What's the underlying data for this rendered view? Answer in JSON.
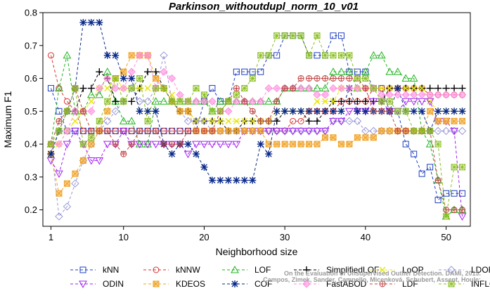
{
  "chart_data": {
    "type": "line",
    "title": "Parkinson_withoutdupl_norm_10_v01",
    "xlabel": "Neighborhood size",
    "ylabel": "Maximum F1",
    "xlim": [
      0,
      53
    ],
    "ylim": [
      0.15,
      0.8
    ],
    "xticks": [
      1,
      10,
      20,
      30,
      40,
      50
    ],
    "yticks": [
      0.2,
      0.3,
      0.4,
      0.5,
      0.6,
      0.7,
      0.8
    ],
    "x": [
      1,
      2,
      3,
      4,
      5,
      6,
      7,
      8,
      9,
      10,
      11,
      12,
      13,
      14,
      15,
      16,
      17,
      18,
      19,
      20,
      21,
      22,
      23,
      24,
      25,
      26,
      27,
      28,
      29,
      30,
      31,
      32,
      33,
      34,
      35,
      36,
      37,
      38,
      39,
      40,
      41,
      42,
      43,
      44,
      45,
      46,
      47,
      48,
      49,
      50,
      51,
      52
    ],
    "legend_position": "bottom",
    "credit": "Campos, Zimek, Sander, Campello, Micenková, Schubert, Assent, Houle: On the Evaluation of Unsupervised Outlier Detection. DAMI, 2015.",
    "series": [
      {
        "name": "kNN",
        "color": "#1f3fbf",
        "marker": "square",
        "values": [
          0.57,
          0.5,
          0.44,
          0.44,
          0.44,
          0.44,
          0.44,
          0.44,
          0.44,
          0.44,
          0.44,
          0.44,
          0.44,
          0.44,
          0.44,
          0.44,
          0.44,
          0.44,
          0.44,
          0.53,
          0.57,
          0.53,
          0.53,
          0.62,
          0.62,
          0.62,
          0.62,
          0.67,
          0.67,
          0.73,
          0.73,
          0.73,
          0.67,
          0.67,
          0.67,
          0.73,
          0.73,
          0.62,
          0.62,
          0.62,
          0.57,
          0.57,
          0.5,
          0.5,
          0.4,
          0.37,
          0.31,
          0.33,
          0.23,
          0.25,
          0.25,
          0.25
        ]
      },
      {
        "name": "kNNW",
        "color": "#d93030",
        "marker": "circle",
        "values": [
          0.67,
          0.57,
          0.53,
          0.5,
          0.44,
          0.44,
          0.44,
          0.44,
          0.44,
          0.44,
          0.44,
          0.44,
          0.44,
          0.44,
          0.44,
          0.44,
          0.44,
          0.44,
          0.44,
          0.44,
          0.44,
          0.44,
          0.44,
          0.44,
          0.44,
          0.44,
          0.44,
          0.44,
          0.44,
          0.44,
          0.47,
          0.47,
          0.5,
          0.5,
          0.5,
          0.5,
          0.53,
          0.53,
          0.53,
          0.53,
          0.57,
          0.57,
          0.57,
          0.57,
          0.57,
          0.57,
          0.57,
          0.55,
          0.55,
          0.55,
          0.55,
          0.55
        ]
      },
      {
        "name": "LOF",
        "color": "#1db31d",
        "marker": "triangle-up",
        "values": [
          0.4,
          0.57,
          0.67,
          0.5,
          0.5,
          0.55,
          0.55,
          0.62,
          0.53,
          0.47,
          0.47,
          0.4,
          0.4,
          0.53,
          0.53,
          0.53,
          0.53,
          0.53,
          0.53,
          0.53,
          0.5,
          0.53,
          0.53,
          0.53,
          0.53,
          0.53,
          0.53,
          0.53,
          0.53,
          0.57,
          0.57,
          0.57,
          0.57,
          0.57,
          0.57,
          0.62,
          0.62,
          0.62,
          0.57,
          0.62,
          0.67,
          0.67,
          0.62,
          0.62,
          0.6,
          0.6,
          0.44,
          0.4,
          0.29,
          0.18,
          0.2,
          0.2
        ]
      },
      {
        "name": "SimplifiedLOF",
        "color": "#000000",
        "marker": "plus",
        "values": [
          0.37,
          0.44,
          0.5,
          0.5,
          0.57,
          0.57,
          0.62,
          0.6,
          0.53,
          0.53,
          0.53,
          0.57,
          0.62,
          0.62,
          0.57,
          0.53,
          0.5,
          0.5,
          0.47,
          0.47,
          0.47,
          0.47,
          0.44,
          0.44,
          0.47,
          0.47,
          0.47,
          0.47,
          0.47,
          0.5,
          0.5,
          0.5,
          0.47,
          0.47,
          0.5,
          0.53,
          0.53,
          0.53,
          0.53,
          0.53,
          0.53,
          0.53,
          0.57,
          0.57,
          0.57,
          0.57,
          0.57,
          0.57,
          0.57,
          0.57,
          0.57,
          0.57
        ]
      },
      {
        "name": "LoOP",
        "color": "#e6e600",
        "marker": "x",
        "values": [
          0.4,
          0.4,
          0.44,
          0.47,
          0.5,
          0.53,
          0.57,
          0.57,
          0.6,
          0.57,
          0.57,
          0.57,
          0.57,
          0.6,
          0.57,
          0.55,
          0.5,
          0.5,
          0.47,
          0.47,
          0.47,
          0.47,
          0.47,
          0.47,
          0.47,
          0.47,
          0.47,
          0.47,
          0.5,
          0.5,
          0.5,
          0.5,
          0.5,
          0.53,
          0.53,
          0.53,
          0.57,
          0.57,
          0.57,
          0.57,
          0.57,
          0.57,
          0.57,
          0.57,
          0.57,
          0.57,
          0.57,
          0.53,
          0.5,
          0.5,
          0.5,
          0.5
        ]
      },
      {
        "name": "LDOF",
        "color": "#9898d8",
        "marker": "diamond",
        "values": [
          0.4,
          0.18,
          0.21,
          0.28,
          0.35,
          0.4,
          0.44,
          0.47,
          0.5,
          0.53,
          0.57,
          0.53,
          0.53,
          0.57,
          0.67,
          0.53,
          0.5,
          0.47,
          0.47,
          0.47,
          0.44,
          0.44,
          0.44,
          0.44,
          0.44,
          0.44,
          0.44,
          0.44,
          0.44,
          0.44,
          0.44,
          0.44,
          0.44,
          0.44,
          0.44,
          0.47,
          0.47,
          0.47,
          0.47,
          0.44,
          0.44,
          0.44,
          0.44,
          0.44,
          0.44,
          0.44,
          0.44,
          0.44,
          0.44,
          0.44,
          0.44,
          0.44
        ]
      },
      {
        "name": "ODIN",
        "color": "#a020f0",
        "marker": "triangle-down",
        "values": [
          0.35,
          0.31,
          0.4,
          0.44,
          0.4,
          0.35,
          0.35,
          0.4,
          0.4,
          0.44,
          0.4,
          0.4,
          0.4,
          0.4,
          0.4,
          0.4,
          0.4,
          0.37,
          0.4,
          0.4,
          0.4,
          0.4,
          0.4,
          0.4,
          0.44,
          0.44,
          0.44,
          0.44,
          0.44,
          0.44,
          0.44,
          0.44,
          0.44,
          0.44,
          0.44,
          0.47,
          0.47,
          0.5,
          0.5,
          0.5,
          0.53,
          0.53,
          0.5,
          0.5,
          0.53,
          0.53,
          0.53,
          0.53,
          0.47,
          0.47,
          0.44,
          0.18
        ]
      },
      {
        "name": "KDEOS",
        "color": "#f0a020",
        "marker": "square-x",
        "values": [
          0.37,
          0.25,
          0.28,
          0.31,
          0.35,
          0.4,
          0.44,
          0.5,
          0.6,
          0.62,
          0.67,
          0.67,
          0.67,
          0.6,
          0.57,
          0.53,
          0.5,
          0.5,
          0.44,
          0.44,
          0.44,
          0.44,
          0.44,
          0.44,
          0.44,
          0.44,
          0.44,
          0.4,
          0.4,
          0.4,
          0.4,
          0.4,
          0.4,
          0.4,
          0.42,
          0.42,
          0.4,
          0.4,
          0.42,
          0.42,
          0.42,
          0.44,
          0.44,
          0.44,
          0.44,
          0.44,
          0.44,
          0.5,
          0.47,
          0.47,
          0.47,
          0.47
        ]
      },
      {
        "name": "COF",
        "color": "#0a2a8a",
        "marker": "asterisk",
        "values": [
          0.37,
          0.44,
          0.5,
          0.57,
          0.77,
          0.77,
          0.77,
          0.67,
          0.67,
          0.6,
          0.6,
          0.5,
          0.5,
          0.5,
          0.4,
          0.37,
          0.4,
          0.4,
          0.37,
          0.33,
          0.29,
          0.29,
          0.29,
          0.29,
          0.29,
          0.29,
          0.4,
          0.37,
          0.5,
          0.5,
          0.5,
          0.5,
          0.5,
          0.5,
          0.5,
          0.5,
          0.5,
          0.57,
          0.5,
          0.5,
          0.5,
          0.5,
          0.5,
          0.57,
          0.5,
          0.5,
          0.5,
          0.44,
          0.5,
          0.5,
          0.5,
          0.5
        ]
      },
      {
        "name": "FastABOD",
        "color": "#ff90e0",
        "marker": "diamond-filled",
        "values": [
          0.4,
          0.4,
          0.44,
          0.5,
          0.5,
          0.5,
          0.57,
          0.6,
          0.57,
          0.57,
          0.62,
          0.67,
          0.67,
          0.57,
          0.62,
          0.6,
          0.55,
          0.53,
          0.53,
          0.53,
          0.53,
          0.5,
          0.5,
          0.53,
          0.53,
          0.53,
          0.53,
          0.57,
          0.57,
          0.57,
          0.57,
          0.57,
          0.57,
          0.55,
          0.55,
          0.57,
          0.57,
          0.57,
          0.57,
          0.57,
          0.57,
          0.55,
          0.55,
          0.55,
          0.55,
          0.55,
          0.55,
          0.55,
          0.55,
          0.55,
          0.55,
          0.55
        ]
      },
      {
        "name": "LDF",
        "color": "#c04040",
        "marker": "circle-plus",
        "values": [
          0.4,
          0.47,
          0.5,
          0.57,
          0.5,
          0.44,
          0.44,
          0.44,
          0.4,
          0.37,
          0.4,
          0.44,
          0.44,
          0.44,
          0.4,
          0.4,
          0.4,
          0.44,
          0.44,
          0.44,
          0.44,
          0.5,
          0.53,
          0.57,
          0.53,
          0.5,
          0.47,
          0.47,
          0.53,
          0.57,
          0.57,
          0.6,
          0.6,
          0.6,
          0.6,
          0.6,
          0.6,
          0.6,
          0.6,
          0.57,
          0.5,
          0.5,
          0.5,
          0.44,
          0.44,
          0.44,
          0.44,
          0.44,
          0.29,
          0.2,
          0.2,
          0.2
        ]
      },
      {
        "name": "INFLO",
        "color": "#8abf20",
        "marker": "square-star",
        "values": [
          0.4,
          0.44,
          0.5,
          0.57,
          0.4,
          0.42,
          0.47,
          0.53,
          0.6,
          0.53,
          0.57,
          0.6,
          0.47,
          0.57,
          0.57,
          0.53,
          0.53,
          0.53,
          0.57,
          0.55,
          0.5,
          0.5,
          0.53,
          0.55,
          0.57,
          0.6,
          0.67,
          0.67,
          0.73,
          0.73,
          0.73,
          0.73,
          0.67,
          0.73,
          0.67,
          0.67,
          0.67,
          0.67,
          0.6,
          0.6,
          0.57,
          0.53,
          0.53,
          0.5,
          0.5,
          0.44,
          0.44,
          0.44,
          0.4,
          0.18,
          0.33,
          0.33
        ]
      }
    ]
  }
}
